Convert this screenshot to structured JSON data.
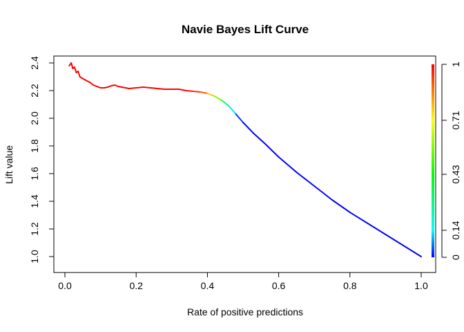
{
  "chart_data": {
    "type": "line",
    "title": "Navie Bayes Lift Curve",
    "xlabel": "Rate of positive predictions",
    "ylabel": "Lift value",
    "xlim": [
      0,
      1.0
    ],
    "ylim": [
      1.0,
      2.4
    ],
    "x_ticks": [
      "0.0",
      "0.2",
      "0.4",
      "0.6",
      "0.8",
      "1.0"
    ],
    "y_ticks": [
      "1.0",
      "1.2",
      "1.4",
      "1.6",
      "1.8",
      "2.0",
      "2.2",
      "2.4"
    ],
    "grid": false,
    "colorbar": {
      "ticks": [
        "0",
        "0.14",
        "0.43",
        "0.71",
        "1"
      ],
      "range": [
        0,
        1
      ],
      "colors": [
        "#0000ff",
        "#00ffff",
        "#00ff00",
        "#ffff00",
        "#ff0000"
      ]
    },
    "series": [
      {
        "x": [
          0.012,
          0.015,
          0.018,
          0.022,
          0.027,
          0.032,
          0.037,
          0.042,
          0.048,
          0.055,
          0.062,
          0.07,
          0.08,
          0.09,
          0.1,
          0.11,
          0.12,
          0.13,
          0.14,
          0.15,
          0.16,
          0.17,
          0.18,
          0.2,
          0.22,
          0.24,
          0.26,
          0.28,
          0.3,
          0.32,
          0.34,
          0.36,
          0.38,
          0.4,
          0.42,
          0.44,
          0.46,
          0.48,
          0.5,
          0.53,
          0.56,
          0.6,
          0.65,
          0.7,
          0.75,
          0.8,
          0.85,
          0.9,
          0.95,
          1.0
        ],
        "y": [
          2.38,
          2.39,
          2.4,
          2.36,
          2.37,
          2.33,
          2.34,
          2.3,
          2.29,
          2.28,
          2.27,
          2.26,
          2.24,
          2.23,
          2.22,
          2.22,
          2.225,
          2.235,
          2.24,
          2.23,
          2.225,
          2.22,
          2.215,
          2.22,
          2.225,
          2.22,
          2.215,
          2.21,
          2.21,
          2.21,
          2.2,
          2.195,
          2.19,
          2.18,
          2.16,
          2.13,
          2.09,
          2.03,
          1.97,
          1.89,
          1.82,
          1.72,
          1.61,
          1.51,
          1.41,
          1.32,
          1.24,
          1.16,
          1.08,
          1.0
        ],
        "cutoff": [
          1.0,
          1.0,
          1.0,
          1.0,
          1.0,
          1.0,
          1.0,
          1.0,
          1.0,
          1.0,
          1.0,
          1.0,
          1.0,
          1.0,
          1.0,
          1.0,
          1.0,
          1.0,
          1.0,
          1.0,
          1.0,
          1.0,
          1.0,
          1.0,
          1.0,
          1.0,
          1.0,
          1.0,
          1.0,
          1.0,
          1.0,
          0.97,
          0.93,
          0.85,
          0.7,
          0.45,
          0.2,
          0.05,
          0.01,
          0.0,
          0.0,
          0.0,
          0.0,
          0.0,
          0.0,
          0.0,
          0.0,
          0.0,
          0.0,
          0.0
        ]
      }
    ]
  }
}
